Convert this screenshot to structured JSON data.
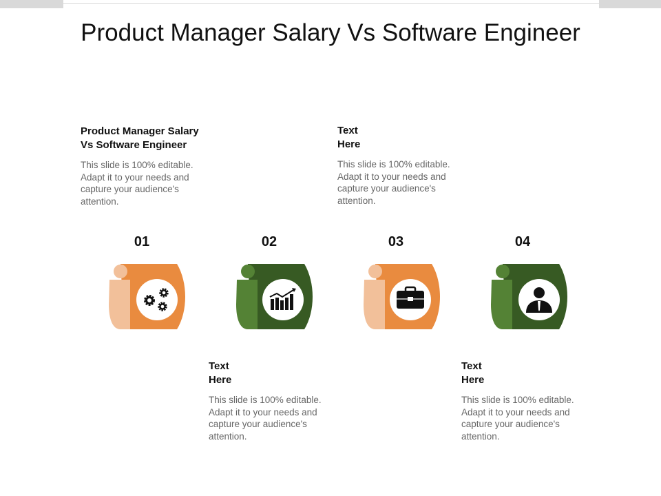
{
  "title": "Product Manager Salary Vs Software Engineer",
  "blocks": [
    {
      "title_lines": [
        "Product Manager Salary",
        "Vs Software Engineer"
      ],
      "body": "This slide is 100% editable. Adapt it to your needs and capture your audience's attention."
    },
    {
      "title_lines": [
        "Text",
        "Here"
      ],
      "body": "This slide is 100% editable. Adapt it to your needs and capture your audience's attention."
    },
    {
      "title_lines": [
        "Text",
        "Here"
      ],
      "body": "This slide is 100% editable. Adapt it to your needs and capture your audience's attention."
    },
    {
      "title_lines": [
        "Text",
        "Here"
      ],
      "body": "This slide is 100% editable. Adapt it to your needs and capture your audience's attention."
    }
  ],
  "steps": [
    {
      "number": "01",
      "icon": "gears-icon",
      "color": "#E98B3F",
      "light": "#F2C09A"
    },
    {
      "number": "02",
      "icon": "bar-chart-icon",
      "color": "#375A23",
      "light": "#548235"
    },
    {
      "number": "03",
      "icon": "briefcase-icon",
      "color": "#E98B3F",
      "light": "#F2C09A"
    },
    {
      "number": "04",
      "icon": "user-icon",
      "color": "#375A23",
      "light": "#548235"
    }
  ]
}
